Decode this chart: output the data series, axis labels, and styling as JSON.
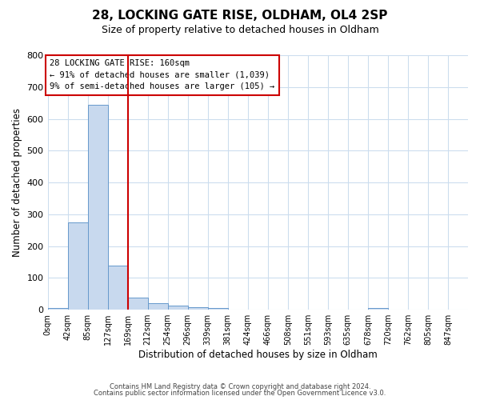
{
  "title": "28, LOCKING GATE RISE, OLDHAM, OL4 2SP",
  "subtitle": "Size of property relative to detached houses in Oldham",
  "xlabel": "Distribution of detached houses by size in Oldham",
  "ylabel": "Number of detached properties",
  "bin_labels": [
    "0sqm",
    "42sqm",
    "85sqm",
    "127sqm",
    "169sqm",
    "212sqm",
    "254sqm",
    "296sqm",
    "339sqm",
    "381sqm",
    "424sqm",
    "466sqm",
    "508sqm",
    "551sqm",
    "593sqm",
    "635sqm",
    "678sqm",
    "720sqm",
    "762sqm",
    "805sqm",
    "847sqm"
  ],
  "bar_values": [
    5,
    275,
    643,
    140,
    38,
    20,
    12,
    8,
    5,
    0,
    0,
    0,
    0,
    0,
    0,
    0,
    5,
    0,
    0,
    0,
    0
  ],
  "bar_color": "#c8d9ee",
  "bar_edge_color": "#6699cc",
  "background_color": "#ffffff",
  "plot_bg_color": "#ffffff",
  "grid_color": "#ccddee",
  "vline_x": 4.0,
  "vline_color": "#cc0000",
  "ylim": [
    0,
    800
  ],
  "yticks": [
    0,
    100,
    200,
    300,
    400,
    500,
    600,
    700,
    800
  ],
  "annotation_title": "28 LOCKING GATE RISE: 160sqm",
  "annotation_line1": "← 91% of detached houses are smaller (1,039)",
  "annotation_line2": "9% of semi-detached houses are larger (105) →",
  "annotation_box_color": "#ffffff",
  "annotation_box_edge": "#cc0000",
  "footer1": "Contains HM Land Registry data © Crown copyright and database right 2024.",
  "footer2": "Contains public sector information licensed under the Open Government Licence v3.0."
}
